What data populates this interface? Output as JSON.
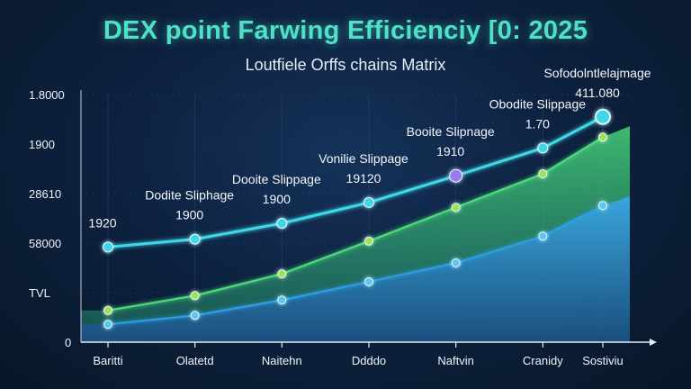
{
  "title": "DEX point Farwing Efficienciy [0: 2025",
  "subtitle": "Loutfiele Orffs chains Matrix",
  "colors": {
    "line_top": "#3fd8e8",
    "area_mid": "#4ddc7a",
    "area_low": "#2f9ee0",
    "title": "#4fe0c8",
    "text": "#f0f4fa"
  },
  "chart_data": {
    "type": "area",
    "categories": [
      "Baritti",
      "Olatetd",
      "Naitehn",
      "Ddddo",
      "Naftvin",
      "Cranidy",
      "Sostiviu"
    ],
    "ytick_labels": [
      "0",
      "TVL",
      "58000",
      "28610",
      "1900",
      "1.8000"
    ],
    "series": [
      {
        "style": "line",
        "values": [
          1920,
          2080,
          2400,
          2820,
          3360,
          3920,
          4550
        ]
      },
      {
        "style": "area",
        "values": [
          640,
          940,
          1380,
          2040,
          2720,
          3400,
          4140
        ]
      },
      {
        "style": "area",
        "values": [
          360,
          540,
          850,
          1220,
          1600,
          2140,
          2760
        ]
      }
    ],
    "highlight_point": {
      "series": 0,
      "index": 4
    },
    "annotations": [
      {
        "index": 0,
        "line1": "",
        "line2": "1920"
      },
      {
        "index": 1,
        "line1": "Dodite Sliphage",
        "line2": "1900"
      },
      {
        "index": 2,
        "line1": "Dooite Slippage",
        "line2": "1900"
      },
      {
        "index": 3,
        "line1": "Vonilie Slippage",
        "line2": "19120"
      },
      {
        "index": 4,
        "line1": "Booite Slipnage",
        "line2": "1910"
      },
      {
        "index": 5,
        "line1": "Obodite Slippage",
        "line2": "1.70"
      },
      {
        "index": 6,
        "line1": "Sofodolntlelajmage",
        "line2": "411.080"
      }
    ],
    "ylim": [
      0,
      5000
    ],
    "grid": true
  }
}
